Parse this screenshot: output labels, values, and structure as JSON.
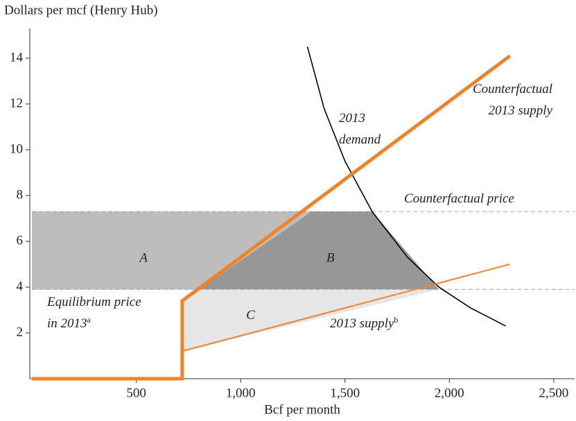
{
  "chart_data": {
    "type": "line",
    "ylabel": "Dollars per mcf (Henry Hub)",
    "xlabel": "Bcf per month",
    "xlim": [
      0,
      2600
    ],
    "ylim": [
      0,
      15.3
    ],
    "xticks": [
      {
        "value": 500,
        "label": "500"
      },
      {
        "value": 1000,
        "label": "1,000"
      },
      {
        "value": 1500,
        "label": "1,500"
      },
      {
        "value": 2000,
        "label": "2,000"
      },
      {
        "value": 2500,
        "label": "2,500"
      }
    ],
    "yticks": [
      2,
      4,
      6,
      8,
      10,
      12,
      14
    ],
    "regions": [
      {
        "label": "A",
        "color": "#bdbdbd",
        "x": [
          0,
          0,
          1340,
          800
        ],
        "y": [
          3.9,
          7.3,
          7.3,
          3.9
        ]
      },
      {
        "label": "B",
        "color": "#979797",
        "x": [
          800,
          1340,
          1630,
          1950
        ],
        "y": [
          3.9,
          7.3,
          7.3,
          3.9
        ]
      },
      {
        "label": "C",
        "color": "#e6e6e6",
        "x": [
          720,
          720,
          800,
          1950
        ],
        "y": [
          1.2,
          3.4,
          3.9,
          3.9
        ]
      }
    ],
    "hlines": [
      {
        "name": "Counterfactual price",
        "value": 7.3,
        "color": "#a0a0a0"
      },
      {
        "name": "Equilibrium price",
        "value": 3.9,
        "color": "#a0a0a0"
      }
    ],
    "series": [
      {
        "name": "2013 demand",
        "color": "#000000",
        "width": 1.6,
        "x": [
          1320,
          1400,
          1500,
          1630,
          1800,
          1950,
          2100,
          2270
        ],
        "values": [
          14.5,
          11.8,
          9.5,
          7.3,
          5.3,
          4.0,
          3.1,
          2.3
        ]
      },
      {
        "name": "2013 supply",
        "color": "#f08228",
        "width": 2,
        "x": [
          720,
          2290
        ],
        "values": [
          1.2,
          5.0
        ]
      },
      {
        "name": "Counterfactual 2013 supply",
        "color": "#f08228",
        "width": 5,
        "x": [
          0,
          720,
          720,
          780,
          2290
        ],
        "values": [
          0,
          0,
          3.4,
          3.8,
          14.1
        ]
      }
    ],
    "annotations": [
      {
        "lines": [
          "2013",
          "demand"
        ]
      },
      {
        "lines": [
          "Counterfactual",
          "2013 supply"
        ]
      },
      {
        "lines": [
          "Counterfactual price"
        ]
      },
      {
        "lines": [
          "Equilibrium price",
          "in 2013"
        ],
        "sup": "a"
      },
      {
        "lines": [
          "2013 supply"
        ],
        "sup": "b"
      }
    ]
  }
}
